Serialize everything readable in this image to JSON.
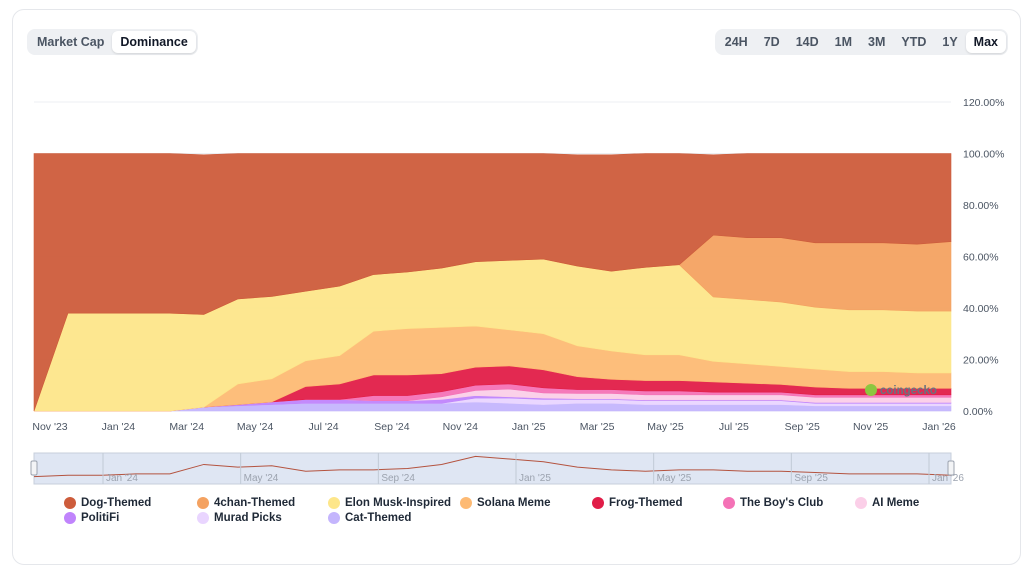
{
  "view_toggle": {
    "options": [
      "Market Cap",
      "Dominance"
    ],
    "selected": "Dominance"
  },
  "range_toggle": {
    "options": [
      "24H",
      "7D",
      "14D",
      "1M",
      "3M",
      "YTD",
      "1Y",
      "Max"
    ],
    "selected": "Max"
  },
  "watermark": "coingecko",
  "chart_data": {
    "type": "area",
    "stacked": true,
    "x": [
      "Oct '23",
      "Nov '23",
      "Dec '23",
      "Jan '24",
      "Feb '24",
      "Mar '24",
      "Apr '24",
      "May '24",
      "Jun '24",
      "Jul '24",
      "Aug '24",
      "Sep '24",
      "Oct '24",
      "Nov '24",
      "Dec '24",
      "Jan '25",
      "Feb '25",
      "Mar '25",
      "Apr '25",
      "May '25",
      "Jun '25",
      "Jul '25",
      "Aug '25",
      "Sep '25",
      "Oct '25",
      "Nov '25",
      "Dec '25",
      "Jan '26"
    ],
    "x_ticks": [
      "Nov '23",
      "Jan '24",
      "Mar '24",
      "May '24",
      "Jul '24",
      "Sep '24",
      "Nov '24",
      "Jan '25",
      "Mar '25",
      "May '25",
      "Jul '25",
      "Sep '25",
      "Nov '25",
      "Jan '26"
    ],
    "y_ticks": [
      "0.00%",
      "20.00%",
      "40.00%",
      "60.00%",
      "80.00%",
      "100.00%",
      "120.00%"
    ],
    "ylim": [
      0,
      120
    ],
    "y_unit": "%",
    "series": [
      {
        "name": "Cat-Themed",
        "color": "#c4b5fd",
        "values": [
          0,
          0,
          0,
          0,
          0,
          1.5,
          2,
          2.5,
          3,
          3,
          3,
          3,
          3,
          3.5,
          3,
          2.5,
          3,
          3,
          2.5,
          2.5,
          2.5,
          2.5,
          2.5,
          2,
          2,
          2,
          2,
          2
        ]
      },
      {
        "name": "Murad Picks",
        "color": "#e9d5ff",
        "values": [
          0,
          0,
          0,
          0,
          0,
          0,
          0,
          0,
          0,
          0,
          0,
          0,
          0,
          1.5,
          2,
          2,
          1.5,
          1.5,
          1.5,
          1.5,
          1.5,
          1.5,
          1.5,
          1,
          1,
          1,
          1,
          1
        ]
      },
      {
        "name": "PolitiFi",
        "color": "#c084fc",
        "values": [
          0,
          0,
          0,
          0,
          0,
          0,
          0.5,
          1,
          1.5,
          1.5,
          1,
          1,
          1.5,
          1,
          0.5,
          0.5,
          0.3,
          0.3,
          0.3,
          0.3,
          0.3,
          0.3,
          0.3,
          0.3,
          0.3,
          0.3,
          0.3,
          0.3
        ]
      },
      {
        "name": "AI Meme",
        "color": "#fbcfe8",
        "values": [
          0,
          0,
          0,
          0,
          0,
          0,
          0,
          0,
          0,
          0,
          0,
          0,
          1,
          2,
          3,
          2,
          2,
          2,
          2,
          2,
          2,
          2,
          2,
          2,
          2,
          2,
          2,
          2
        ]
      },
      {
        "name": "The Boy's Club",
        "color": "#f472b6",
        "values": [
          0,
          0,
          0,
          0,
          0,
          0,
          0,
          0,
          0,
          0,
          2,
          2,
          2,
          2,
          2,
          2,
          1.5,
          1.5,
          1.5,
          1.5,
          1,
          1,
          1,
          1,
          1,
          1,
          1,
          1
        ]
      },
      {
        "name": "Frog-Themed",
        "color": "#e11d48",
        "values": [
          0,
          0,
          0,
          0,
          0,
          0,
          0,
          0,
          5,
          6,
          8,
          8,
          7,
          7,
          7,
          7,
          5,
          4,
          4,
          4,
          4,
          3.5,
          3,
          3,
          2.5,
          2.5,
          2.5,
          2.5
        ]
      },
      {
        "name": "Solana Meme",
        "color": "#fdba74",
        "values": [
          0,
          0,
          0,
          0,
          0,
          0,
          8,
          9,
          10,
          11,
          17,
          18,
          18,
          16,
          14,
          14,
          12,
          11,
          10,
          10,
          8,
          7.5,
          7,
          7,
          6.5,
          6.5,
          6,
          6
        ]
      },
      {
        "name": "Elon Musk-Inspired",
        "color": "#fde68a",
        "values": [
          0,
          38,
          38,
          38,
          38,
          36,
          33,
          32,
          27,
          27,
          22,
          22,
          23,
          25,
          27,
          29,
          31,
          31,
          34,
          35,
          25,
          25,
          25,
          24,
          24,
          24,
          24,
          24
        ]
      },
      {
        "name": "4chan-Themed",
        "color": "#f4a261",
        "values": [
          0,
          0,
          0,
          0,
          0,
          0,
          0,
          0,
          0,
          0,
          0,
          0,
          0,
          0,
          0,
          0,
          0,
          0,
          0,
          0,
          24,
          24,
          25,
          25,
          26,
          26,
          26,
          27
        ]
      },
      {
        "name": "Dog-Themed",
        "color": "#cd5c3b",
        "values": [
          100,
          62,
          62,
          62,
          62,
          62,
          56.5,
          55.5,
          53.5,
          51.5,
          47,
          46,
          44.5,
          42,
          41.5,
          41,
          43.2,
          45.2,
          44.2,
          43.2,
          31.2,
          32.7,
          32.7,
          34.7,
          34.7,
          34.7,
          35.2,
          34.2
        ]
      }
    ],
    "navigator": {
      "x_ticks": [
        "Jan '24",
        "May '24",
        "Sep '24",
        "Jan '25",
        "May '25",
        "Sep '25",
        "Jan '26"
      ],
      "values": [
        0.2,
        0.25,
        0.25,
        0.3,
        0.3,
        0.65,
        0.55,
        0.6,
        0.4,
        0.45,
        0.45,
        0.5,
        0.65,
        0.95,
        0.85,
        0.75,
        0.55,
        0.45,
        0.4,
        0.45,
        0.45,
        0.4,
        0.4,
        0.35,
        0.3,
        0.3,
        0.3,
        0.25
      ]
    },
    "legend": {
      "placement": "bottom",
      "items": [
        {
          "name": "Dog-Themed",
          "color": "#cd5c3b"
        },
        {
          "name": "4chan-Themed",
          "color": "#f4a261"
        },
        {
          "name": "Elon Musk-Inspired",
          "color": "#fde68a"
        },
        {
          "name": "Solana Meme",
          "color": "#fdba74"
        },
        {
          "name": "Frog-Themed",
          "color": "#e11d48"
        },
        {
          "name": "The Boy's Club",
          "color": "#f472b6"
        },
        {
          "name": "AI Meme",
          "color": "#fbcfe8"
        },
        {
          "name": "PolitiFi",
          "color": "#c084fc"
        },
        {
          "name": "Murad Picks",
          "color": "#e9d5ff"
        },
        {
          "name": "Cat-Themed",
          "color": "#c4b5fd"
        }
      ]
    }
  }
}
